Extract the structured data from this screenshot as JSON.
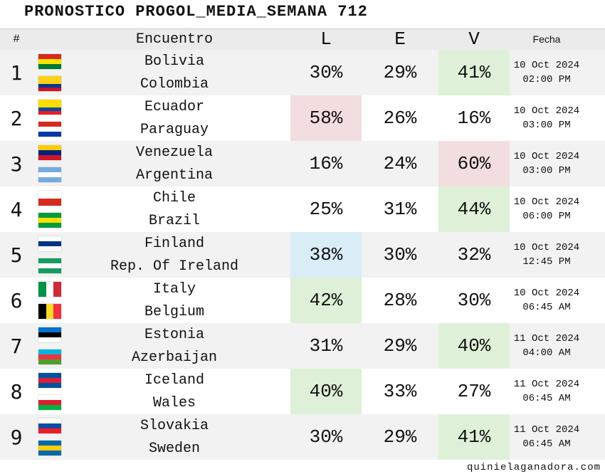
{
  "header": {
    "title": "PRONOSTICO PROGOL_MEDIA_SEMANA 712"
  },
  "table": {
    "columns": [
      "#",
      "Encuentro",
      "L",
      "E",
      "V",
      "Fecha"
    ],
    "rows": [
      {
        "num": "1",
        "home": "Bolivia",
        "away": "Colombia",
        "L": "30%",
        "E": "29%",
        "V": "41%",
        "date": "10 Oct 2024",
        "time": "02:00 PM",
        "highlight": {
          "cell": "V",
          "color": "#dff0d8"
        }
      },
      {
        "num": "2",
        "home": "Ecuador",
        "away": "Paraguay",
        "L": "58%",
        "E": "26%",
        "V": "16%",
        "date": "10 Oct 2024",
        "time": "03:00 PM",
        "highlight": {
          "cell": "L",
          "color": "#f2dede"
        }
      },
      {
        "num": "3",
        "home": "Venezuela",
        "away": "Argentina",
        "L": "16%",
        "E": "24%",
        "V": "60%",
        "date": "10 Oct 2024",
        "time": "03:00 PM",
        "highlight": {
          "cell": "V",
          "color": "#f2dede"
        }
      },
      {
        "num": "4",
        "home": "Chile",
        "away": "Brazil",
        "L": "25%",
        "E": "31%",
        "V": "44%",
        "date": "10 Oct 2024",
        "time": "06:00 PM",
        "highlight": {
          "cell": "V",
          "color": "#dff0d8"
        }
      },
      {
        "num": "5",
        "home": "Finland",
        "away": "Rep. Of Ireland",
        "L": "38%",
        "E": "30%",
        "V": "32%",
        "date": "10 Oct 2024",
        "time": "12:45 PM",
        "highlight": {
          "cell": "L",
          "color": "#d9edf7"
        }
      },
      {
        "num": "6",
        "home": "Italy",
        "away": "Belgium",
        "L": "42%",
        "E": "28%",
        "V": "30%",
        "date": "10 Oct 2024",
        "time": "06:45 AM",
        "highlight": {
          "cell": "L",
          "color": "#dff0d8"
        }
      },
      {
        "num": "7",
        "home": "Estonia",
        "away": "Azerbaijan",
        "L": "31%",
        "E": "29%",
        "V": "40%",
        "date": "11 Oct 2024",
        "time": "04:00 AM",
        "highlight": {
          "cell": "V",
          "color": "#dff0d8"
        }
      },
      {
        "num": "8",
        "home": "Iceland",
        "away": "Wales",
        "L": "40%",
        "E": "33%",
        "V": "27%",
        "date": "11 Oct 2024",
        "time": "06:45 AM",
        "highlight": {
          "cell": "L",
          "color": "#dff0d8"
        }
      },
      {
        "num": "9",
        "home": "Slovakia",
        "away": "Sweden",
        "L": "30%",
        "E": "29%",
        "V": "41%",
        "date": "11 Oct 2024",
        "time": "06:45 AM",
        "highlight": {
          "cell": "V",
          "color": "#dff0d8"
        }
      }
    ]
  },
  "footer": {
    "site": "quinielaganadora.com"
  }
}
